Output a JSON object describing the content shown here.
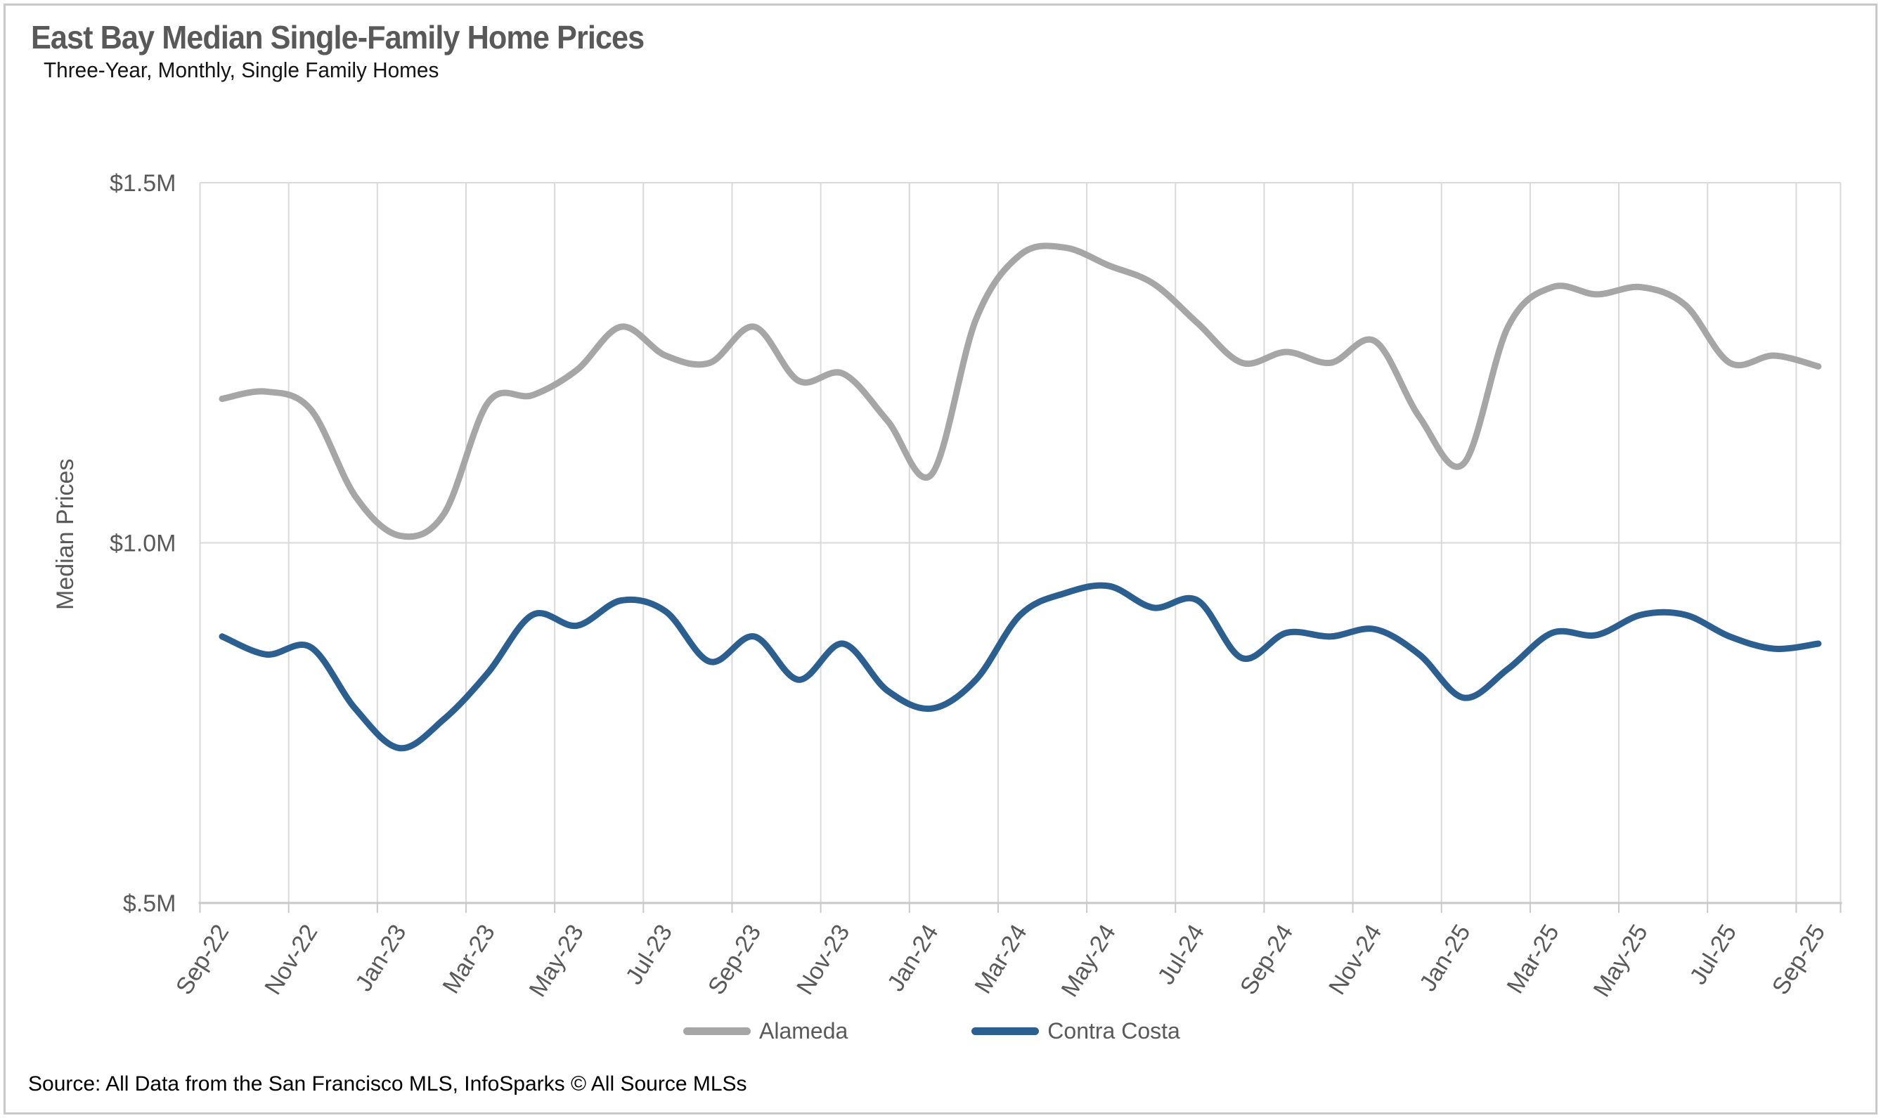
{
  "header": {
    "title": "East Bay Median Single-Family Home Prices",
    "subtitle": "Three-Year, Monthly, Single Family Homes"
  },
  "footer": {
    "source": "Source: All Data from the San Francisco MLS, InfoSparks © All Source MLSs"
  },
  "colors": {
    "alameda_line": "#a6a6a6",
    "contra_costa_line": "#2b5f8f",
    "gridline": "#d9d9d9",
    "axis_line": "#c9c9c9",
    "tick_label": "#595959",
    "title_text": "#595959"
  },
  "chart_data": {
    "type": "line",
    "title": "East Bay Median Single-Family Home Prices",
    "subtitle": "Three-Year, Monthly, Single Family Homes",
    "xlabel": "",
    "ylabel": "Median Prices",
    "ylim": [
      0.5,
      1.5
    ],
    "y_unit": "millions of dollars",
    "y_ticks": [
      {
        "label": "$1.5M",
        "value": 1.5
      },
      {
        "label": "$1.0M",
        "value": 1.0
      },
      {
        "label": "$.5M",
        "value": 0.5
      }
    ],
    "grid": "both",
    "legend_position": "bottom",
    "smoothed_lines": true,
    "x_tick_labels": [
      "Sep-22",
      "Nov-22",
      "Jan-23",
      "Mar-23",
      "May-23",
      "Jul-23",
      "Sep-23",
      "Nov-23",
      "Jan-24",
      "Mar-24",
      "May-24",
      "Jul-24",
      "Sep-24",
      "Nov-24",
      "Jan-25",
      "Mar-25",
      "May-25",
      "Jul-25",
      "Sep-25"
    ],
    "months": [
      "Sep-22",
      "Oct-22",
      "Nov-22",
      "Dec-22",
      "Jan-23",
      "Feb-23",
      "Mar-23",
      "Apr-23",
      "May-23",
      "Jun-23",
      "Jul-23",
      "Aug-23",
      "Sep-23",
      "Oct-23",
      "Nov-23",
      "Dec-23",
      "Jan-24",
      "Feb-24",
      "Mar-24",
      "Apr-24",
      "May-24",
      "Jun-24",
      "Jul-24",
      "Aug-24",
      "Sep-24",
      "Oct-24",
      "Nov-24",
      "Dec-24",
      "Jan-25",
      "Feb-25",
      "Mar-25",
      "Apr-25",
      "May-25",
      "Jun-25",
      "Jul-25",
      "Aug-25",
      "Sep-25"
    ],
    "series": [
      {
        "name": "Alameda",
        "color": "#a6a6a6",
        "values": [
          1.2,
          1.21,
          1.185,
          1.065,
          1.01,
          1.04,
          1.195,
          1.205,
          1.24,
          1.3,
          1.26,
          1.25,
          1.3,
          1.225,
          1.235,
          1.17,
          1.095,
          1.31,
          1.4,
          1.41,
          1.385,
          1.36,
          1.305,
          1.25,
          1.265,
          1.25,
          1.28,
          1.175,
          1.11,
          1.3,
          1.355,
          1.345,
          1.355,
          1.33,
          1.25,
          1.26,
          1.245
        ]
      },
      {
        "name": "Contra Costa",
        "color": "#2b5f8f",
        "values": [
          0.87,
          0.845,
          0.855,
          0.77,
          0.715,
          0.755,
          0.82,
          0.9,
          0.885,
          0.92,
          0.905,
          0.835,
          0.87,
          0.81,
          0.86,
          0.795,
          0.77,
          0.81,
          0.9,
          0.93,
          0.94,
          0.91,
          0.92,
          0.84,
          0.875,
          0.87,
          0.88,
          0.845,
          0.785,
          0.825,
          0.875,
          0.872,
          0.9,
          0.9,
          0.87,
          0.853,
          0.86
        ]
      }
    ]
  }
}
